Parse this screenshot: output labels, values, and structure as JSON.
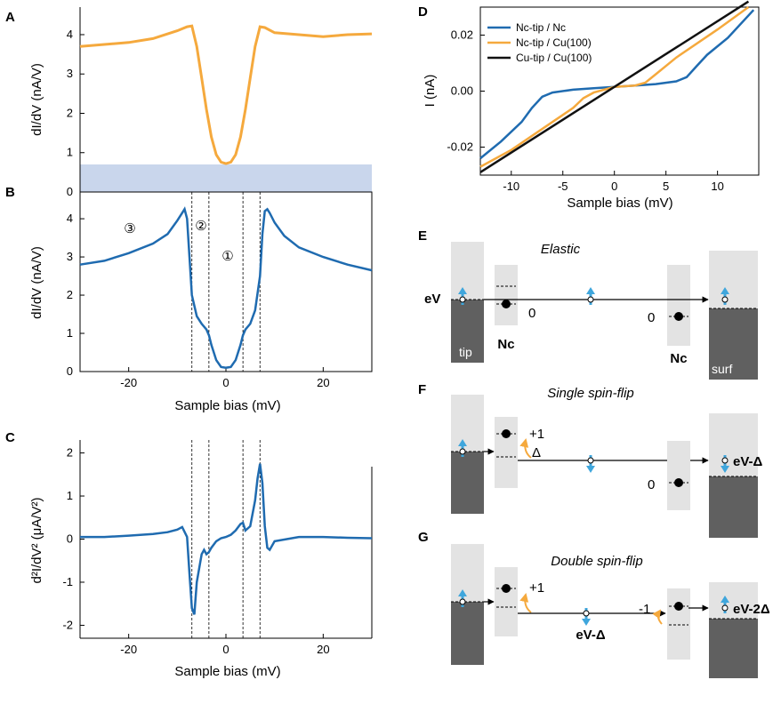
{
  "panel_labels": {
    "A": "A",
    "B": "B",
    "C": "C",
    "D": "D",
    "E": "E",
    "F": "F",
    "G": "G"
  },
  "colors": {
    "orange": "#F5A93D",
    "blue": "#1F6BB0",
    "black": "#111111",
    "band": "#C9D6EC",
    "box": "#E3E3E3",
    "dark": "#606060",
    "arrow_blue": "#3FA6DC"
  },
  "chart_data": [
    {
      "id": "A",
      "type": "line",
      "ylabel": "dI/dV (nA/V)",
      "xlim": [
        -30,
        30
      ],
      "ylim": [
        0,
        4.7
      ],
      "yticks": [
        "0",
        "1",
        "2",
        "3",
        "4"
      ],
      "series": [
        {
          "color": "orange",
          "x": [
            -30,
            -25,
            -20,
            -15,
            -10,
            -8,
            -7,
            -6,
            -5,
            -4,
            -3,
            -2,
            -1,
            0,
            1,
            2,
            3,
            4,
            5,
            6,
            7,
            8,
            10,
            15,
            20,
            25,
            30
          ],
          "y": [
            3.7,
            3.75,
            3.8,
            3.9,
            4.1,
            4.2,
            4.22,
            3.7,
            2.9,
            2.1,
            1.4,
            0.95,
            0.76,
            0.72,
            0.76,
            0.95,
            1.4,
            2.1,
            2.9,
            3.7,
            4.2,
            4.18,
            4.05,
            4.0,
            3.95,
            4.0,
            4.02
          ]
        }
      ],
      "band": [
        0,
        0.7
      ]
    },
    {
      "id": "B",
      "type": "line",
      "xlabel": "Sample bias (mV)",
      "ylabel": "dI/dV (nA/V)",
      "xlim": [
        -30,
        30
      ],
      "ylim": [
        0,
        4.7
      ],
      "xticks": [
        "-20",
        "0",
        "20"
      ],
      "yticks": [
        "0",
        "1",
        "2",
        "3",
        "4"
      ],
      "vlines": [
        -7,
        -3.5,
        3.5,
        7
      ],
      "region_labels": [
        "③",
        "②",
        "①"
      ],
      "series": [
        {
          "color": "blue",
          "x": [
            -30,
            -25,
            -20,
            -15,
            -12,
            -10,
            -9,
            -8.5,
            -8,
            -7.5,
            -7,
            -6,
            -5,
            -4,
            -3.5,
            -3,
            -2,
            -1,
            0,
            1,
            2,
            3,
            3.5,
            4,
            5,
            6,
            7,
            7.5,
            8,
            8.5,
            9,
            10,
            12,
            15,
            20,
            25,
            30
          ],
          "y": [
            2.8,
            2.9,
            3.1,
            3.35,
            3.6,
            3.95,
            4.15,
            4.25,
            4.0,
            3.0,
            2.0,
            1.45,
            1.25,
            1.1,
            0.95,
            0.7,
            0.3,
            0.12,
            0.1,
            0.12,
            0.3,
            0.7,
            0.95,
            1.1,
            1.25,
            1.6,
            2.5,
            3.6,
            4.2,
            4.25,
            4.15,
            3.9,
            3.55,
            3.25,
            3.0,
            2.8,
            2.65
          ]
        }
      ]
    },
    {
      "id": "C",
      "type": "line",
      "xlabel": "Sample bias (mV)",
      "ylabel": "d²I/dV² (μA/V²)",
      "xlim": [
        -30,
        30
      ],
      "ylim": [
        -2.3,
        2.3
      ],
      "xticks": [
        "-20",
        "0",
        "20"
      ],
      "yticks": [
        "-2",
        "-1",
        "0",
        "1",
        "2"
      ],
      "vlines": [
        -7,
        -3.5,
        3.5,
        7
      ],
      "series": [
        {
          "color": "blue",
          "x": [
            -30,
            -25,
            -20,
            -15,
            -12,
            -10,
            -9,
            -8,
            -7.5,
            -7,
            -6.5,
            -6,
            -5,
            -4.5,
            -4,
            -3.5,
            -3,
            -2,
            -1,
            0,
            1,
            2,
            3,
            3.5,
            4,
            5,
            6,
            6.5,
            7,
            7.5,
            8,
            8.5,
            9,
            10,
            15,
            20,
            25,
            30
          ],
          "y": [
            0.05,
            0.05,
            0.08,
            0.12,
            0.16,
            0.22,
            0.28,
            0.05,
            -0.8,
            -1.6,
            -1.75,
            -1.0,
            -0.35,
            -0.25,
            -0.35,
            -0.3,
            -0.2,
            -0.05,
            0.02,
            0.05,
            0.1,
            0.2,
            0.35,
            0.38,
            0.2,
            0.3,
            0.9,
            1.4,
            1.75,
            1.3,
            0.3,
            -0.2,
            -0.25,
            -0.05,
            0.05,
            0.05,
            0.03,
            0.02
          ]
        }
      ]
    },
    {
      "id": "D",
      "type": "line",
      "xlabel": "Sample bias (mV)",
      "ylabel": "I (nA)",
      "xlim": [
        -13,
        14
      ],
      "ylim": [
        -0.03,
        0.03
      ],
      "xticks": [
        "-10",
        "-5",
        "0",
        "5",
        "10"
      ],
      "yticks": [
        "-0.02",
        "0.00",
        "0.02"
      ],
      "series": [
        {
          "name": "Nc-tip / Nc",
          "color": "blue",
          "x": [
            -13,
            -11,
            -9,
            -8,
            -7,
            -6,
            -4,
            -2,
            0,
            2,
            4,
            6,
            7,
            8,
            9,
            11,
            13.5
          ],
          "y": [
            -0.024,
            -0.018,
            -0.011,
            -0.006,
            -0.002,
            -0.0005,
            0.0005,
            0.001,
            0.0015,
            0.002,
            0.0025,
            0.0035,
            0.005,
            0.009,
            0.013,
            0.019,
            0.029
          ]
        },
        {
          "name": "Nc-tip / Cu(100)",
          "color": "orange",
          "x": [
            -13,
            -10,
            -6,
            -4,
            -3,
            -2,
            0,
            2,
            3,
            4,
            6,
            10,
            13
          ],
          "y": [
            -0.027,
            -0.021,
            -0.011,
            -0.006,
            -0.0025,
            -0.0005,
            0.0015,
            0.002,
            0.003,
            0.006,
            0.012,
            0.022,
            0.03
          ]
        },
        {
          "name": "Cu-tip / Cu(100)",
          "color": "black",
          "x": [
            -13,
            13
          ],
          "y": [
            -0.029,
            0.032
          ]
        }
      ]
    }
  ],
  "schematic": {
    "E": {
      "title": "Elastic",
      "ev": "eV",
      "zero1": "0",
      "zero2": "0",
      "tip": "tip",
      "nc1": "Nc",
      "nc2": "Nc",
      "surf": "surf"
    },
    "F": {
      "title": "Single spin-flip",
      "plus1": "+1",
      "delta": "Δ",
      "zero": "0",
      "result": "eV-Δ"
    },
    "G": {
      "title": "Double spin-flip",
      "plus1": "+1",
      "mid": "eV-Δ",
      "minus1": "-1",
      "result": "eV-2Δ"
    }
  }
}
